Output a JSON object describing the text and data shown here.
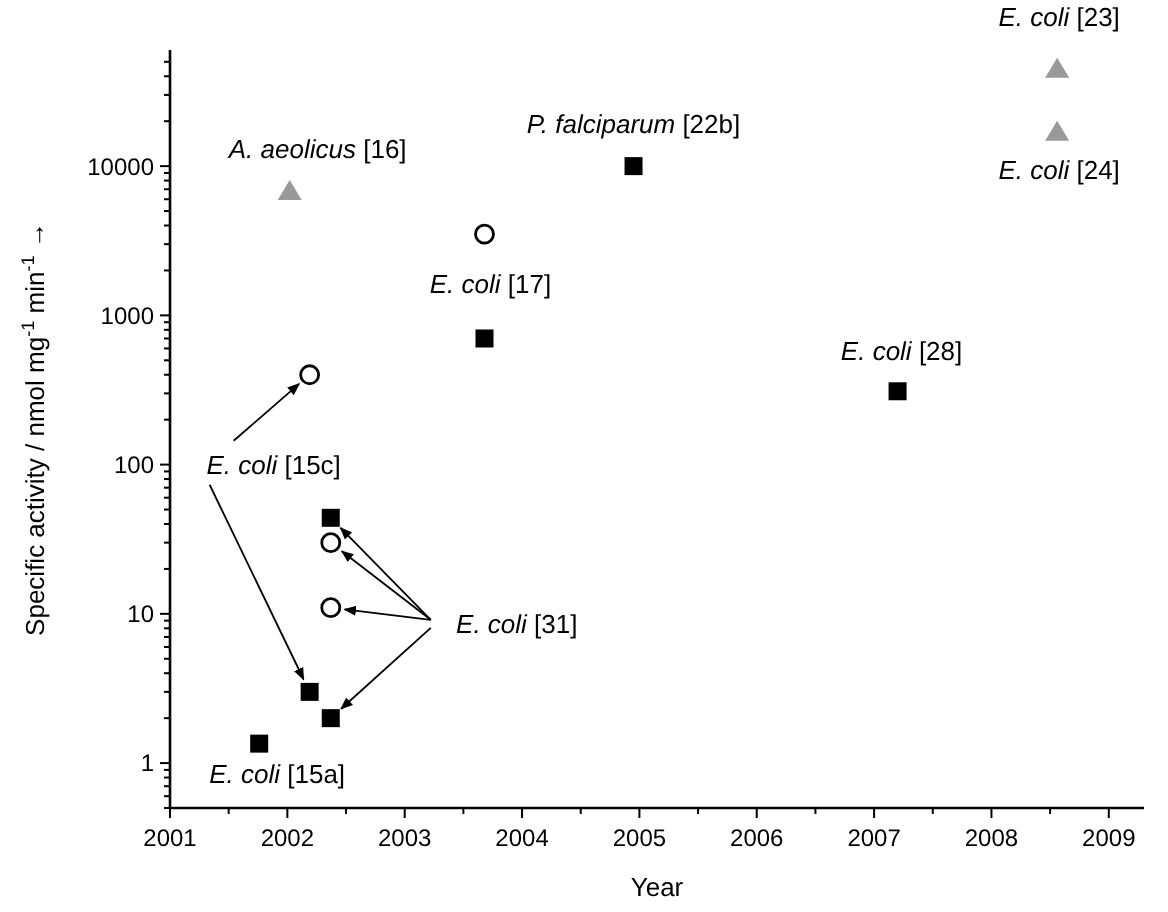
{
  "chart_data": {
    "type": "scatter",
    "xlabel": "Year",
    "ylabel": "Specific activity / nmol mg$^{-1}$ min$^{-1}$ →",
    "log": "y",
    "grid": false,
    "xlim": [
      2001,
      2009.3
    ],
    "xticks": [
      2001,
      {
        "value": 2001.5,
        "label": null
      },
      2002,
      {
        "value": 2002.5,
        "label": null
      },
      2003,
      {
        "value": 2003.5,
        "label": null
      },
      2004,
      {
        "value": 2004.5,
        "label": null
      },
      2005,
      {
        "value": 2005.5,
        "label": null
      },
      2006,
      {
        "value": 2006.5,
        "label": null
      },
      2007,
      {
        "value": 2007.5,
        "label": null
      },
      2008,
      {
        "value": 2008.5,
        "label": null
      },
      2009
    ],
    "ylim": [
      0.5,
      60000
    ],
    "yticks": [
      {
        "value": 0.5,
        "label": null
      },
      {
        "value": 0.6,
        "label": null
      },
      {
        "value": 0.7,
        "label": null
      },
      {
        "value": 0.8,
        "label": null
      },
      {
        "value": 0.9,
        "label": null
      },
      1,
      {
        "value": 2,
        "label": null
      },
      {
        "value": 3,
        "label": null
      },
      {
        "value": 4,
        "label": null
      },
      {
        "value": 5,
        "label": null
      },
      {
        "value": 6,
        "label": null
      },
      {
        "value": 7,
        "label": null
      },
      {
        "value": 8,
        "label": null
      },
      {
        "value": 9,
        "label": null
      },
      10,
      {
        "value": 20,
        "label": null
      },
      {
        "value": 30,
        "label": null
      },
      {
        "value": 40,
        "label": null
      },
      {
        "value": 50,
        "label": null
      },
      {
        "value": 60,
        "label": null
      },
      {
        "value": 70,
        "label": null
      },
      {
        "value": 80,
        "label": null
      },
      {
        "value": 90,
        "label": null
      },
      100,
      {
        "value": 200,
        "label": null
      },
      {
        "value": 300,
        "label": null
      },
      {
        "value": 400,
        "label": null
      },
      {
        "value": 500,
        "label": null
      },
      {
        "value": 600,
        "label": null
      },
      {
        "value": 700,
        "label": null
      },
      {
        "value": 800,
        "label": null
      },
      {
        "value": 900,
        "label": null
      },
      1000,
      {
        "value": 2000,
        "label": null
      },
      {
        "value": 3000,
        "label": null
      },
      {
        "value": 4000,
        "label": null
      },
      {
        "value": 5000,
        "label": null
      },
      {
        "value": 6000,
        "label": null
      },
      {
        "value": 7000,
        "label": null
      },
      {
        "value": 8000,
        "label": null
      },
      {
        "value": 9000,
        "label": null
      },
      10000,
      {
        "value": 20000,
        "label": null
      },
      {
        "value": 30000,
        "label": null
      },
      {
        "value": 40000,
        "label": null
      },
      {
        "value": 50000,
        "label": null
      }
    ],
    "series": [
      {
        "marker": "square",
        "color": "#000000",
        "x": [
          2001.76,
          2002.19,
          2002.37,
          2002.37,
          2003.68,
          2004.95,
          2007.2
        ],
        "values": [
          1.35,
          3,
          2,
          44,
          700,
          10000,
          310
        ]
      },
      {
        "marker": "circle",
        "color": "#000000",
        "x": [
          2002.19,
          2002.37,
          2002.37,
          2003.68
        ],
        "values": [
          400,
          30,
          11,
          3500
        ]
      },
      {
        "marker": "triangle",
        "color": "#999999",
        "x": [
          2002.02,
          2008.56,
          2008.56
        ],
        "values": [
          6800,
          45000,
          17000
        ]
      }
    ],
    "annotations": [
      {
        "text": "A. aeolicus [16]",
        "x": 2002.02,
        "y": 6800
      },
      {
        "text": "P. falciparum [22b]",
        "x": 2004.95,
        "y": 10000
      },
      {
        "text": "E. coli [23]",
        "x": 2008.56,
        "y": 45000
      },
      {
        "text": "E. coli [24]",
        "x": 2008.56,
        "y": 17000
      },
      {
        "text": "E. coli [17]",
        "x": 2003.68,
        "y": 3500
      },
      {
        "text": "E. coli [28]",
        "x": 2007.2,
        "y": 310
      },
      {
        "text": "E. coli [15a]",
        "x": 2001.76,
        "y": 1.35
      },
      {
        "text": "E. coli [15c]",
        "x": 2002.19,
        "y": 400
      },
      {
        "text": "E. coli [31]",
        "x": 2002.37,
        "y": 44
      }
    ]
  }
}
